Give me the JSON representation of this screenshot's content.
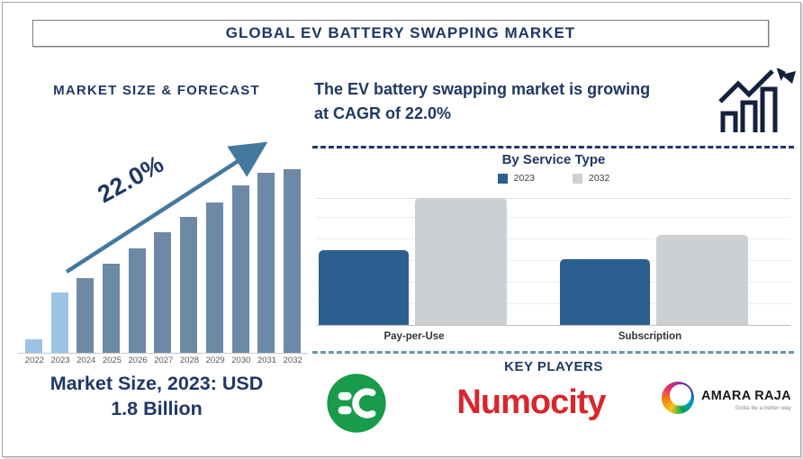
{
  "title": "GLOBAL EV BATTERY SWAPPING MARKET",
  "left_panel": {
    "heading": "MARKET SIZE & FORECAST",
    "growth_label": "22.0%",
    "caption_line1": "Market Size, 2023: USD",
    "caption_line2": "1.8 Billion"
  },
  "right_panel": {
    "headline_line1": "The EV battery swapping market is growing",
    "headline_line2": "at CAGR of 22.0%",
    "service_chart_title": "By Service Type",
    "key_players_heading": "KEY PLAYERS"
  },
  "key_players": [
    {
      "name": "green-ev-plug-logo"
    },
    {
      "name": "Numocity"
    },
    {
      "name": "AMARA RAJA",
      "tagline": "Gotta be a better way"
    }
  ],
  "colors": {
    "navy": "#1f3864",
    "bar_steel_blue": "#6d89a6",
    "bar_light_blue": "#9cc3e5",
    "trend_arrow": "#44789f",
    "service_blue": "#2b5f8f",
    "service_gray": "#cdd0d3",
    "numocity_red": "#d8262c",
    "plug_green": "#189b4a",
    "divider_navy_dashed": "#1f3864",
    "divider_blue_dashed": "#6b93ad",
    "year_text": "#595959"
  },
  "chart_data": [
    {
      "type": "bar",
      "title": "MARKET SIZE & FORECAST",
      "categories": [
        "2022",
        "2023",
        "2024",
        "2025",
        "2026",
        "2027",
        "2028",
        "2029",
        "2030",
        "2031",
        "2032"
      ],
      "values_pct_of_max": [
        8,
        33,
        41,
        49,
        57,
        66,
        74,
        82,
        91,
        98,
        100
      ],
      "highlighted_bars": [
        "2022",
        "2023"
      ],
      "annotation": "22.0%",
      "note": "Market Size, 2023: USD 1.8 Billion; values are relative bar heights (% of 2032 bar), CAGR 22.0%",
      "grid": false,
      "legend_position": "none"
    },
    {
      "type": "bar",
      "title": "By Service Type",
      "categories": [
        "Pay-per-Use",
        "Subscription"
      ],
      "series": [
        {
          "name": "2023",
          "values": [
            59,
            52
          ]
        },
        {
          "name": "2032",
          "values": [
            100,
            71
          ]
        }
      ],
      "units": "relative bar height (% of tallest bar)",
      "grid": true,
      "legend_position": "top"
    }
  ]
}
